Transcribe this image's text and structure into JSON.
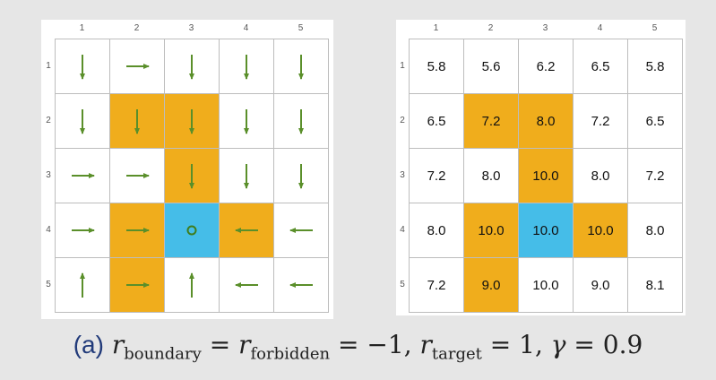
{
  "column_labels": [
    "1",
    "2",
    "3",
    "4",
    "5"
  ],
  "row_labels": [
    "1",
    "2",
    "3",
    "4",
    "5"
  ],
  "colors": {
    "forbidden": "#f0ad1c",
    "target": "#45bde8",
    "arrow": "#5a8f2a",
    "circle": "#3f7d1e",
    "caption_tag": "#223b7a"
  },
  "cell_types": [
    [
      "normal",
      "normal",
      "normal",
      "normal",
      "normal"
    ],
    [
      "normal",
      "forbidden",
      "forbidden",
      "normal",
      "normal"
    ],
    [
      "normal",
      "normal",
      "forbidden",
      "normal",
      "normal"
    ],
    [
      "normal",
      "forbidden",
      "target",
      "forbidden",
      "normal"
    ],
    [
      "normal",
      "forbidden",
      "normal",
      "normal",
      "normal"
    ]
  ],
  "policy": [
    [
      "down",
      "right",
      "down",
      "down",
      "down"
    ],
    [
      "down",
      "down",
      "down",
      "down",
      "down"
    ],
    [
      "right",
      "right",
      "down",
      "down",
      "down"
    ],
    [
      "right",
      "right",
      "stay",
      "left",
      "left"
    ],
    [
      "up",
      "right",
      "up",
      "left",
      "left"
    ]
  ],
  "state_values": [
    [
      "5.8",
      "5.6",
      "6.2",
      "6.5",
      "5.8"
    ],
    [
      "6.5",
      "7.2",
      "8.0",
      "7.2",
      "6.5"
    ],
    [
      "7.2",
      "8.0",
      "10.0",
      "8.0",
      "7.2"
    ],
    [
      "8.0",
      "10.0",
      "10.0",
      "10.0",
      "8.0"
    ],
    [
      "7.2",
      "9.0",
      "10.0",
      "9.0",
      "8.1"
    ]
  ],
  "caption": {
    "tag": "(a)",
    "r": "r",
    "sub_boundary": "boundary",
    "eq1": " = ",
    "sub_forbidden": "forbidden",
    "eq2": " = −1, ",
    "sub_target": "target",
    "eq3": " = 1, ",
    "gamma": "γ",
    "eq4": " = 0.9"
  }
}
